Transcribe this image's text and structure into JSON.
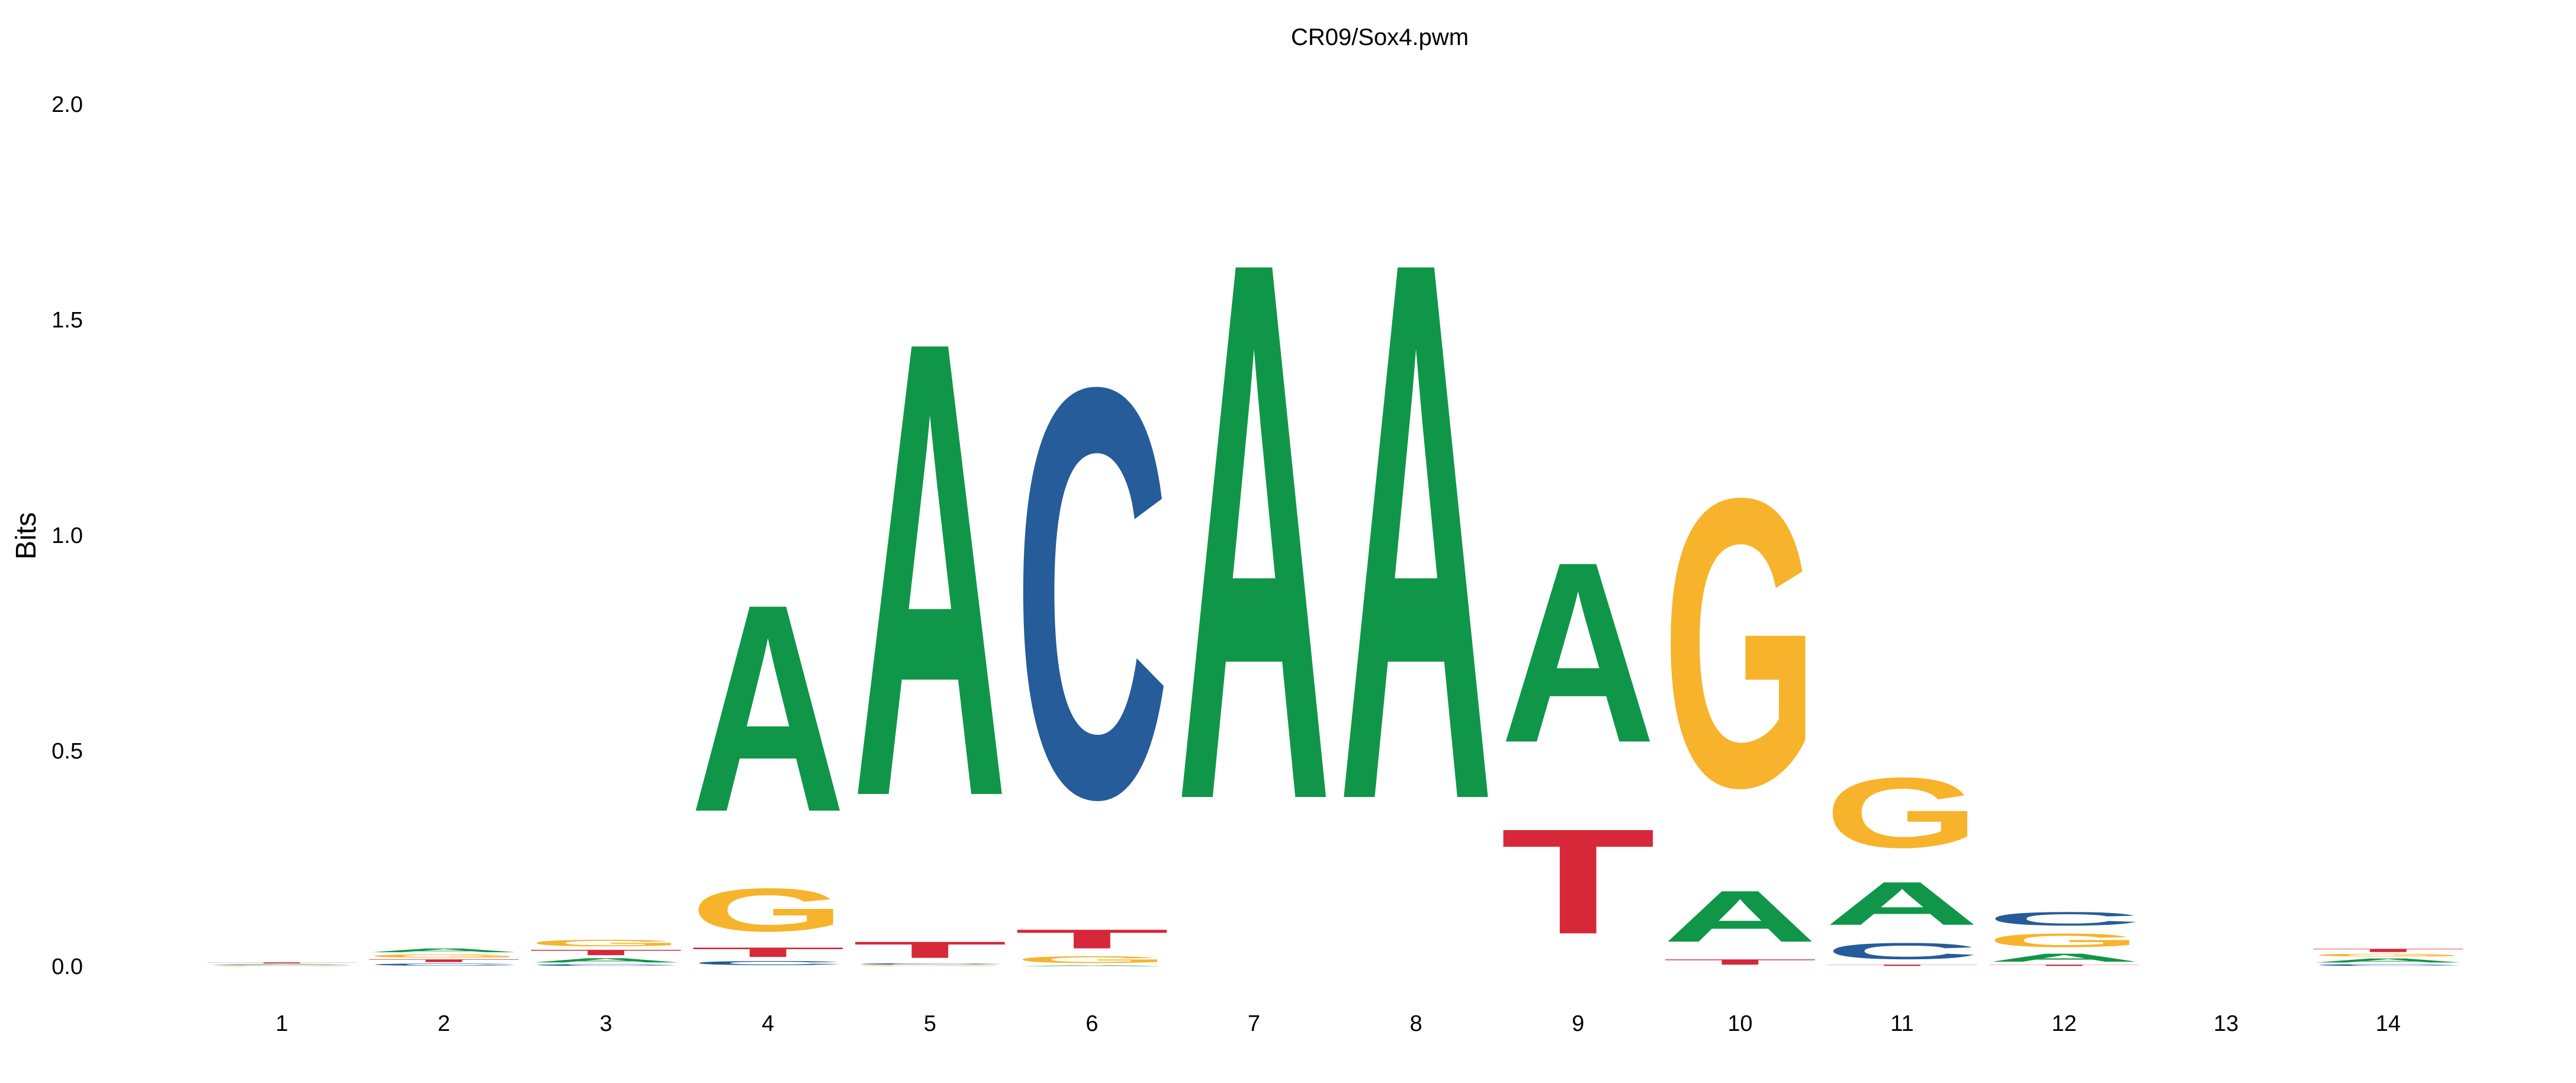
{
  "chart_data": {
    "type": "sequence-logo",
    "title": "CR09/Sox4.pwm",
    "ylabel": "Bits",
    "xlabel": "",
    "ylim": [
      0,
      2
    ],
    "y_ticks": [
      "0.0",
      "0.5",
      "1.0",
      "1.5",
      "2.0"
    ],
    "y_tick_values": [
      0,
      0.5,
      1.0,
      1.5,
      2.0
    ],
    "grid": false,
    "colors": {
      "A": "#109648",
      "C": "#255C99",
      "G": "#F7B32B",
      "T": "#D62839"
    },
    "positions": [
      {
        "label": "1",
        "letters": [
          {
            "base": "G",
            "bits": 0.002
          },
          {
            "base": "C",
            "bits": 0.002
          },
          {
            "base": "A",
            "bits": 0.002
          },
          {
            "base": "T",
            "bits": 0.004
          }
        ]
      },
      {
        "label": "2",
        "letters": [
          {
            "base": "C",
            "bits": 0.008
          },
          {
            "base": "T",
            "bits": 0.01
          },
          {
            "base": "G",
            "bits": 0.012
          },
          {
            "base": "A",
            "bits": 0.014
          }
        ]
      },
      {
        "label": "3",
        "letters": [
          {
            "base": "C",
            "bits": 0.006
          },
          {
            "base": "A",
            "bits": 0.016
          },
          {
            "base": "T",
            "bits": 0.02
          },
          {
            "base": "G",
            "bits": 0.024
          }
        ]
      },
      {
        "label": "4",
        "letters": [
          {
            "base": "C",
            "bits": 0.015
          },
          {
            "base": "T",
            "bits": 0.035
          },
          {
            "base": "G",
            "bits": 0.16
          },
          {
            "base": "A",
            "bits": 0.77
          }
        ]
      },
      {
        "label": "5",
        "letters": [
          {
            "base": "G",
            "bits": 0.003
          },
          {
            "base": "C",
            "bits": 0.005
          },
          {
            "base": "T",
            "bits": 0.06
          },
          {
            "base": "A",
            "bits": 1.69
          }
        ]
      },
      {
        "label": "6",
        "letters": [
          {
            "base": "A",
            "bits": 0.003
          },
          {
            "base": "G",
            "bits": 0.025
          },
          {
            "base": "T",
            "bits": 0.07
          },
          {
            "base": "C",
            "bits": 1.52
          }
        ]
      },
      {
        "label": "7",
        "letters": [
          {
            "base": "A",
            "bits": 2.0
          }
        ]
      },
      {
        "label": "8",
        "letters": [
          {
            "base": "A",
            "bits": 2.0
          }
        ]
      },
      {
        "label": "9",
        "letters": [
          {
            "base": "T",
            "bits": 0.39
          },
          {
            "base": "A",
            "bits": 0.67
          }
        ]
      },
      {
        "label": "10",
        "letters": [
          {
            "base": "T",
            "bits": 0.02
          },
          {
            "base": "A",
            "bits": 0.19
          },
          {
            "base": "G",
            "bits": 1.07
          }
        ]
      },
      {
        "label": "11",
        "letters": [
          {
            "base": "T",
            "bits": 0.005
          },
          {
            "base": "C",
            "bits": 0.06
          },
          {
            "base": "A",
            "bits": 0.16
          },
          {
            "base": "G",
            "bits": 0.26
          }
        ]
      },
      {
        "label": "12",
        "letters": [
          {
            "base": "T",
            "bits": 0.005
          },
          {
            "base": "A",
            "bits": 0.03
          },
          {
            "base": "G",
            "bits": 0.05
          },
          {
            "base": "C",
            "bits": 0.05
          }
        ]
      },
      {
        "label": "13",
        "letters": []
      },
      {
        "label": "14",
        "letters": [
          {
            "base": "C",
            "bits": 0.006
          },
          {
            "base": "A",
            "bits": 0.015
          },
          {
            "base": "G",
            "bits": 0.01
          },
          {
            "base": "T",
            "bits": 0.012
          }
        ]
      }
    ]
  }
}
